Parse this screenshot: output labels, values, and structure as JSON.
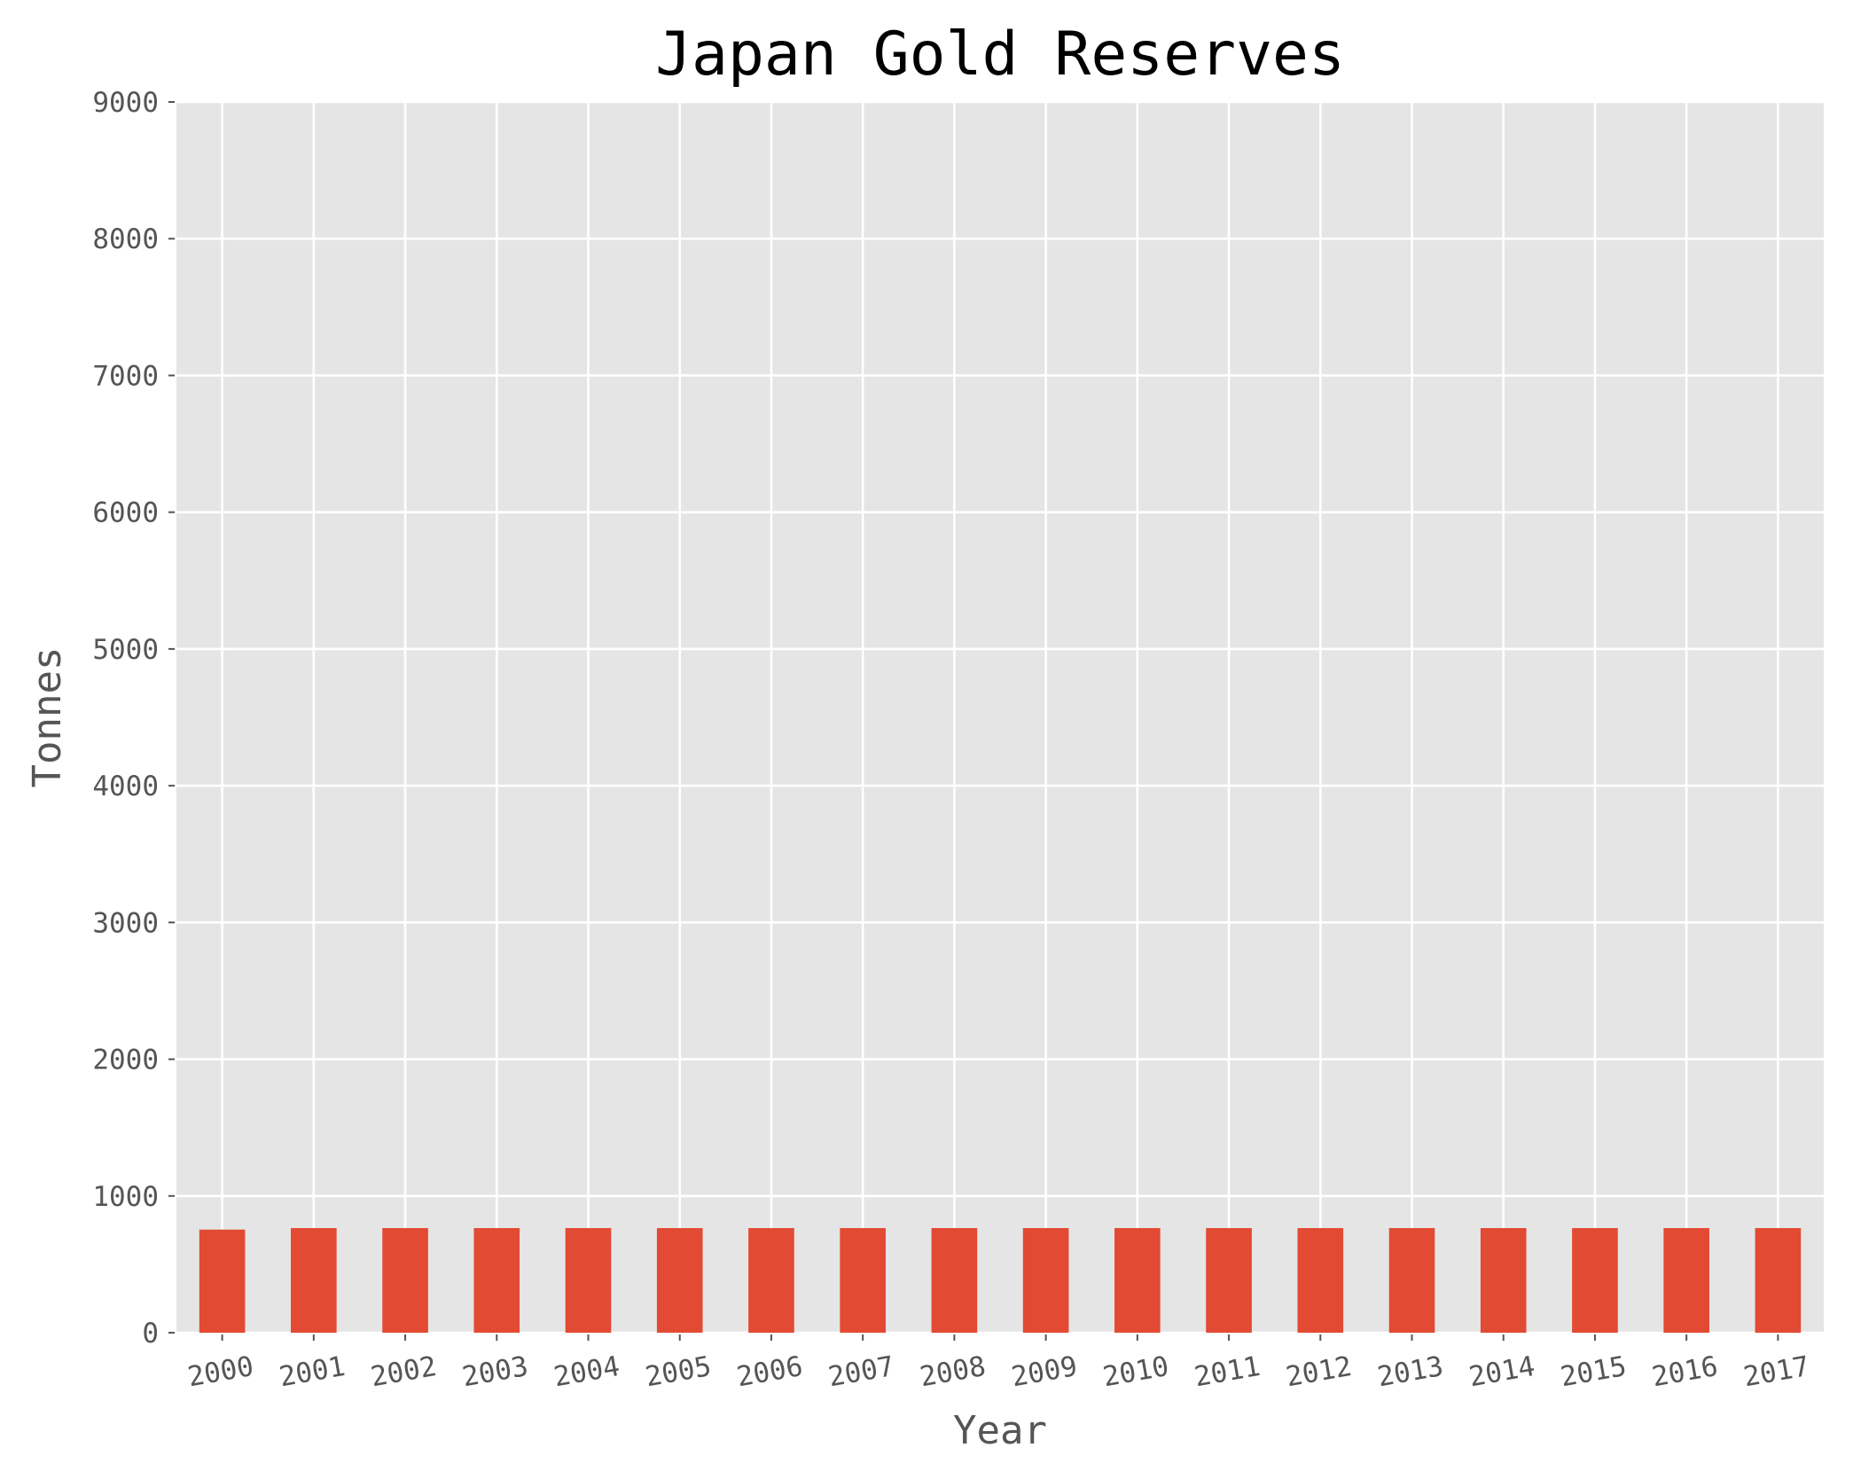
{
  "chart_data": {
    "type": "bar",
    "title": "Japan Gold Reserves",
    "xlabel": "Year",
    "ylabel": "Tonnes",
    "categories": [
      "2000",
      "2001",
      "2002",
      "2003",
      "2004",
      "2005",
      "2006",
      "2007",
      "2008",
      "2009",
      "2010",
      "2011",
      "2012",
      "2013",
      "2014",
      "2015",
      "2016",
      "2017"
    ],
    "values": [
      754,
      765,
      765,
      765,
      765,
      765,
      765,
      765,
      765,
      765,
      765,
      765,
      765,
      765,
      765,
      765,
      765,
      765
    ],
    "ylim": [
      0,
      9000
    ],
    "yticks": [
      0,
      1000,
      2000,
      3000,
      4000,
      5000,
      6000,
      7000,
      8000,
      9000
    ],
    "bar_color": "#e24a33",
    "plot_background": "#e5e5e5",
    "grid": true,
    "legend": false
  }
}
